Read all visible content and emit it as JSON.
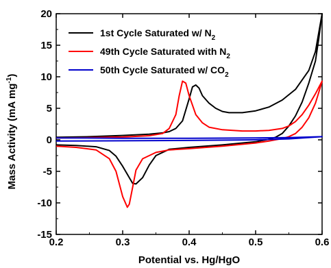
{
  "chart_data": {
    "type": "line",
    "xlabel": "Potential vs. Hg/HgO",
    "ylabel_main": "Mass Activity (mA mg",
    "ylabel_sup": "-1",
    "ylabel_end": ")",
    "xlim": [
      0.2,
      0.6
    ],
    "ylim": [
      -15,
      20
    ],
    "xticks": [
      0.2,
      0.3,
      0.4,
      0.5,
      0.6
    ],
    "xtick_labels": [
      "0.2",
      "0.3",
      "0.4",
      "0.5",
      "0.6"
    ],
    "yticks": [
      -15,
      -10,
      -5,
      0,
      5,
      10,
      15,
      20
    ],
    "ytick_labels": [
      "-15",
      "-10",
      "-5",
      "0",
      "5",
      "10",
      "15",
      "20"
    ],
    "grid": false,
    "legend_position": "top-left",
    "series": [
      {
        "name_main": "1st Cycle Saturated w/ N",
        "name_sub": "2",
        "color": "#000000",
        "points": [
          [
            0.2,
            0.4
          ],
          [
            0.25,
            0.5
          ],
          [
            0.3,
            0.7
          ],
          [
            0.34,
            0.9
          ],
          [
            0.36,
            1.1
          ],
          [
            0.37,
            1.3
          ],
          [
            0.38,
            1.8
          ],
          [
            0.39,
            3.0
          ],
          [
            0.4,
            6.5
          ],
          [
            0.405,
            8.4
          ],
          [
            0.41,
            8.7
          ],
          [
            0.415,
            8.2
          ],
          [
            0.42,
            7.0
          ],
          [
            0.43,
            5.8
          ],
          [
            0.44,
            5.0
          ],
          [
            0.45,
            4.5
          ],
          [
            0.46,
            4.3
          ],
          [
            0.48,
            4.3
          ],
          [
            0.5,
            4.6
          ],
          [
            0.52,
            5.2
          ],
          [
            0.54,
            6.3
          ],
          [
            0.56,
            8.0
          ],
          [
            0.58,
            11.0
          ],
          [
            0.59,
            14.0
          ],
          [
            0.6,
            20.0
          ],
          [
            0.595,
            16.0
          ],
          [
            0.59,
            12.5
          ],
          [
            0.58,
            9.0
          ],
          [
            0.57,
            6.0
          ],
          [
            0.56,
            3.8
          ],
          [
            0.55,
            2.2
          ],
          [
            0.54,
            1.0
          ],
          [
            0.53,
            0.4
          ],
          [
            0.52,
            0.1
          ],
          [
            0.5,
            -0.3
          ],
          [
            0.45,
            -0.8
          ],
          [
            0.4,
            -1.2
          ],
          [
            0.37,
            -1.5
          ],
          [
            0.35,
            -2.5
          ],
          [
            0.34,
            -4.0
          ],
          [
            0.33,
            -6.0
          ],
          [
            0.32,
            -7.0
          ],
          [
            0.315,
            -6.9
          ],
          [
            0.31,
            -6.0
          ],
          [
            0.3,
            -4.2
          ],
          [
            0.29,
            -2.6
          ],
          [
            0.28,
            -1.7
          ],
          [
            0.26,
            -1.1
          ],
          [
            0.23,
            -0.9
          ],
          [
            0.2,
            -0.8
          ]
        ]
      },
      {
        "name_main": "49th Cycle Saturated with N",
        "name_sub": "2",
        "color": "#ff0000",
        "points": [
          [
            0.2,
            0.3
          ],
          [
            0.25,
            0.35
          ],
          [
            0.3,
            0.45
          ],
          [
            0.34,
            0.65
          ],
          [
            0.36,
            1.0
          ],
          [
            0.37,
            1.8
          ],
          [
            0.38,
            4.0
          ],
          [
            0.385,
            7.0
          ],
          [
            0.39,
            9.3
          ],
          [
            0.395,
            9.0
          ],
          [
            0.4,
            7.0
          ],
          [
            0.41,
            4.0
          ],
          [
            0.42,
            2.7
          ],
          [
            0.43,
            2.0
          ],
          [
            0.45,
            1.6
          ],
          [
            0.48,
            1.4
          ],
          [
            0.5,
            1.4
          ],
          [
            0.52,
            1.5
          ],
          [
            0.54,
            1.8
          ],
          [
            0.55,
            2.2
          ],
          [
            0.56,
            2.9
          ],
          [
            0.57,
            4.0
          ],
          [
            0.58,
            5.5
          ],
          [
            0.59,
            7.3
          ],
          [
            0.6,
            9.3
          ],
          [
            0.595,
            7.5
          ],
          [
            0.59,
            5.8
          ],
          [
            0.58,
            3.5
          ],
          [
            0.57,
            2.0
          ],
          [
            0.56,
            1.0
          ],
          [
            0.55,
            0.5
          ],
          [
            0.54,
            0.2
          ],
          [
            0.52,
            -0.2
          ],
          [
            0.5,
            -0.5
          ],
          [
            0.45,
            -1.0
          ],
          [
            0.4,
            -1.4
          ],
          [
            0.37,
            -1.6
          ],
          [
            0.35,
            -2.0
          ],
          [
            0.33,
            -3.0
          ],
          [
            0.32,
            -4.8
          ],
          [
            0.315,
            -7.5
          ],
          [
            0.31,
            -10.2
          ],
          [
            0.307,
            -10.7
          ],
          [
            0.3,
            -9.0
          ],
          [
            0.29,
            -5.0
          ],
          [
            0.28,
            -3.0
          ],
          [
            0.26,
            -1.6
          ],
          [
            0.23,
            -1.2
          ],
          [
            0.2,
            -1.0
          ]
        ]
      },
      {
        "name_main": "50th Cycle Saturated w/ CO",
        "name_sub": "2",
        "color": "#0000cc",
        "points": [
          [
            0.2,
            0.3
          ],
          [
            0.3,
            0.25
          ],
          [
            0.4,
            0.25
          ],
          [
            0.5,
            0.3
          ],
          [
            0.55,
            0.35
          ],
          [
            0.6,
            0.5
          ],
          [
            0.55,
            0.15
          ],
          [
            0.5,
            0.0
          ],
          [
            0.4,
            -0.1
          ],
          [
            0.3,
            -0.15
          ],
          [
            0.2,
            -0.2
          ]
        ]
      }
    ]
  }
}
